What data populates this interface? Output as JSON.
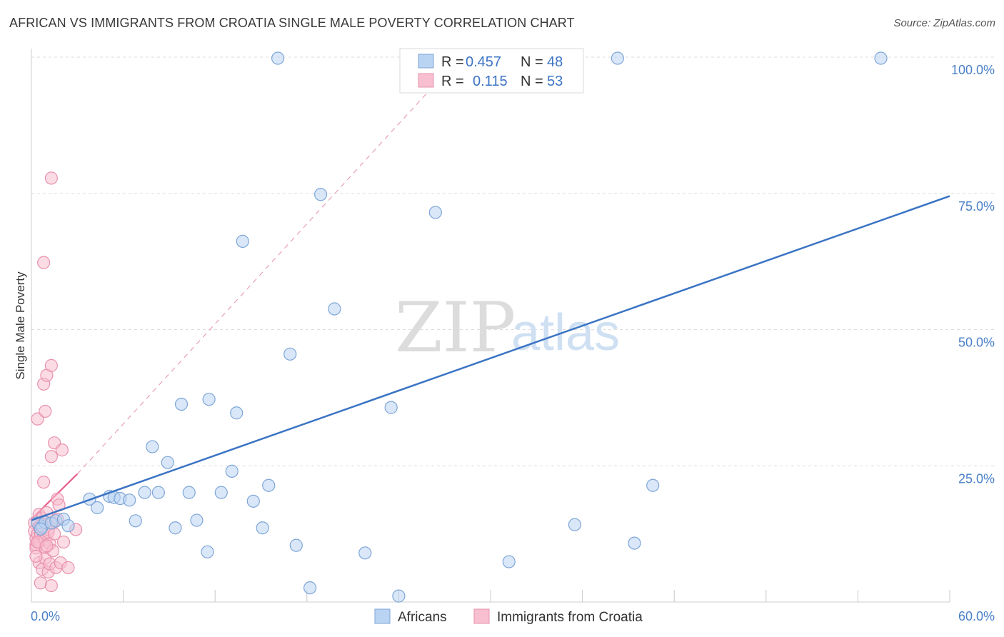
{
  "title": "AFRICAN VS IMMIGRANTS FROM CROATIA SINGLE MALE POVERTY CORRELATION CHART",
  "source": "Source: ZipAtlas.com",
  "watermark": {
    "zip": "ZIP",
    "atlas": "atlas"
  },
  "colors": {
    "blue": "#3b74c4",
    "blue_fill": "#b9d3f2",
    "pink": "#e8608c",
    "pink_fill": "#f7bfd0",
    "grid": "#dddddd"
  },
  "legend": {
    "rows": [
      {
        "r_label": "R =",
        "r_value": "0.457",
        "n_label": "N =",
        "n_value": "48"
      },
      {
        "r_label": "R =",
        "r_value": "0.115",
        "n_label": "N =",
        "n_value": "53"
      }
    ]
  },
  "chart_data": {
    "type": "scatter",
    "title": "AFRICAN VS IMMIGRANTS FROM CROATIA SINGLE MALE POVERTY CORRELATION CHART",
    "xlabel": "",
    "ylabel": "Single Male Poverty",
    "xlim": [
      0,
      60
    ],
    "ylim": [
      0,
      100
    ],
    "x_tick_labels": [
      "0.0%",
      "60.0%"
    ],
    "y_tick_values": [
      25,
      50,
      75,
      100
    ],
    "y_tick_labels": [
      "25.0%",
      "50.0%",
      "75.0%",
      "100.0%"
    ],
    "grid": true,
    "legend_position": "top-center",
    "series": [
      {
        "name": "Africans",
        "color": "#3b74c4",
        "r": 0.457,
        "n": 48,
        "points": [
          [
            0.4,
            14.5
          ],
          [
            0.7,
            13.8
          ],
          [
            0.9,
            14.6
          ],
          [
            1.3,
            14.5
          ],
          [
            1.6,
            14.9
          ],
          [
            2.1,
            15.2
          ],
          [
            2.4,
            14.0
          ],
          [
            3.8,
            18.9
          ],
          [
            4.3,
            17.3
          ],
          [
            5.1,
            19.4
          ],
          [
            5.4,
            19.2
          ],
          [
            5.8,
            19.0
          ],
          [
            6.4,
            18.7
          ],
          [
            6.8,
            14.9
          ],
          [
            7.4,
            20.1
          ],
          [
            7.9,
            28.5
          ],
          [
            8.3,
            20.1
          ],
          [
            8.9,
            25.6
          ],
          [
            9.4,
            13.6
          ],
          [
            9.8,
            36.3
          ],
          [
            10.3,
            20.1
          ],
          [
            10.8,
            15.0
          ],
          [
            11.5,
            9.2
          ],
          [
            11.6,
            37.2
          ],
          [
            12.4,
            20.1
          ],
          [
            13.1,
            24.0
          ],
          [
            13.4,
            34.7
          ],
          [
            13.8,
            66.2
          ],
          [
            14.5,
            18.5
          ],
          [
            15.1,
            13.6
          ],
          [
            15.5,
            21.4
          ],
          [
            16.1,
            99.8
          ],
          [
            16.9,
            45.5
          ],
          [
            17.3,
            10.4
          ],
          [
            18.2,
            2.6
          ],
          [
            18.9,
            74.8
          ],
          [
            19.8,
            53.8
          ],
          [
            21.8,
            9.0
          ],
          [
            23.5,
            35.7
          ],
          [
            24.0,
            1.1
          ],
          [
            26.4,
            71.5
          ],
          [
            31.2,
            7.4
          ],
          [
            35.5,
            14.2
          ],
          [
            38.3,
            99.8
          ],
          [
            39.4,
            10.8
          ],
          [
            40.6,
            21.4
          ],
          [
            55.5,
            99.8
          ],
          [
            0.6,
            13.4
          ]
        ],
        "trendline": {
          "x1": 0.0,
          "y1": 15.0,
          "x2": 60.0,
          "y2": 74.5,
          "style": "solid"
        }
      },
      {
        "name": "Immigrants from Croatia",
        "color": "#e8608c",
        "r": 0.115,
        "n": 53,
        "points": [
          [
            0.2,
            14.5
          ],
          [
            0.2,
            13.0
          ],
          [
            0.3,
            11.7
          ],
          [
            0.3,
            10.5
          ],
          [
            0.3,
            9.9
          ],
          [
            0.4,
            12.5
          ],
          [
            0.4,
            14.9
          ],
          [
            0.4,
            33.6
          ],
          [
            0.5,
            16.1
          ],
          [
            0.5,
            13.8
          ],
          [
            0.5,
            11.0
          ],
          [
            0.5,
            7.2
          ],
          [
            0.6,
            3.5
          ],
          [
            0.6,
            12.5
          ],
          [
            0.7,
            15.4
          ],
          [
            0.7,
            6.0
          ],
          [
            0.7,
            14.2
          ],
          [
            0.8,
            40.0
          ],
          [
            0.8,
            22.0
          ],
          [
            0.8,
            62.3
          ],
          [
            0.8,
            12.1
          ],
          [
            0.9,
            35.0
          ],
          [
            0.9,
            11.5
          ],
          [
            0.9,
            8.0
          ],
          [
            0.9,
            10.0
          ],
          [
            1.0,
            41.6
          ],
          [
            1.0,
            16.4
          ],
          [
            1.1,
            13.3
          ],
          [
            1.1,
            12.8
          ],
          [
            1.1,
            5.5
          ],
          [
            1.2,
            7.0
          ],
          [
            1.2,
            10.7
          ],
          [
            1.3,
            77.8
          ],
          [
            1.3,
            43.4
          ],
          [
            1.3,
            26.7
          ],
          [
            1.3,
            3.0
          ],
          [
            1.4,
            14.5
          ],
          [
            1.4,
            9.4
          ],
          [
            1.5,
            29.2
          ],
          [
            1.5,
            12.5
          ],
          [
            1.6,
            6.3
          ],
          [
            1.7,
            18.9
          ],
          [
            1.7,
            15.2
          ],
          [
            1.8,
            17.8
          ],
          [
            1.9,
            7.2
          ],
          [
            2.0,
            27.9
          ],
          [
            2.1,
            11.0
          ],
          [
            2.4,
            6.3
          ],
          [
            2.9,
            13.3
          ],
          [
            0.6,
            14.0
          ],
          [
            0.4,
            11.0
          ],
          [
            0.3,
            8.4
          ],
          [
            1.0,
            10.3
          ]
        ],
        "trendline": {
          "x1": 0.0,
          "y1": 15.2,
          "x2": 3.0,
          "y2": 23.5,
          "style": "solid",
          "extension": {
            "x1": 3.0,
            "y1": 23.5,
            "x2": 28.0,
            "y2": 100.0,
            "style": "dashed"
          }
        }
      }
    ]
  }
}
